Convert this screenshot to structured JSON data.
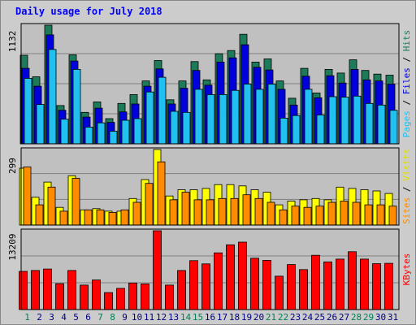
{
  "chart_data": {
    "type": "bar",
    "title": "Daily usage for July 2018",
    "categories": [
      "1",
      "2",
      "3",
      "4",
      "5",
      "6",
      "7",
      "8",
      "9",
      "10",
      "11",
      "12",
      "13",
      "14",
      "15",
      "16",
      "17",
      "18",
      "19",
      "20",
      "21",
      "22",
      "23",
      "24",
      "25",
      "26",
      "27",
      "28",
      "29",
      "30",
      "31"
    ],
    "weekend_days": [
      "1",
      "7",
      "8",
      "14",
      "15",
      "21",
      "22",
      "28",
      "29"
    ],
    "panels": [
      {
        "id": "top",
        "ymax_label": "1132",
        "ymax": 1132,
        "right_label": [
          "Pages",
          " / ",
          "Files",
          " / ",
          "Hits"
        ],
        "series": [
          {
            "name": "Hits",
            "color": "#1e7b5a",
            "values": [
              845,
              640,
              1132,
              365,
              850,
              300,
              400,
              240,
              385,
              470,
              600,
              795,
              420,
              600,
              785,
              610,
              860,
              890,
              1045,
              780,
              810,
              600,
              435,
              720,
              485,
              710,
              675,
              802,
              700,
              665,
              655
            ]
          },
          {
            "name": "Files",
            "color": "#0000dd",
            "values": [
              720,
              550,
              1040,
              320,
              790,
              255,
              340,
              205,
              305,
              380,
              550,
              715,
              380,
              530,
              700,
              560,
              780,
              820,
              945,
              730,
              705,
              520,
              370,
              645,
              440,
              650,
              580,
              710,
              610,
              600,
              570
            ]
          },
          {
            "name": "Pages",
            "color": "#20c0f0",
            "values": [
              625,
              375,
              900,
              235,
              710,
              160,
              200,
              120,
              225,
              240,
              495,
              635,
              310,
              300,
              520,
              470,
              470,
              510,
              570,
              520,
              570,
              245,
              270,
              520,
              275,
              450,
              445,
              455,
              385,
              370,
              320
            ]
          }
        ]
      },
      {
        "id": "middle",
        "ymax_label": "299",
        "ymax": 299,
        "right_label": [
          "Sites",
          " / ",
          "Visits"
        ],
        "series": [
          {
            "name": "Visits",
            "color": "#ffff00",
            "values": [
              225,
              110,
              170,
              70,
              195,
              60,
              65,
              55,
              55,
              105,
              180,
              299,
              115,
              140,
              140,
              145,
              160,
              160,
              155,
              140,
              130,
              80,
              95,
              100,
              105,
              100,
              150,
              145,
              140,
              135,
              125
            ]
          },
          {
            "name": "Sites",
            "color": "#ff8c00",
            "values": [
              230,
              80,
              150,
              55,
              185,
              60,
              60,
              50,
              60,
              90,
              165,
              250,
              100,
              130,
              100,
              100,
              105,
              105,
              120,
              105,
              90,
              60,
              75,
              70,
              75,
              90,
              95,
              90,
              80,
              80,
              75
            ]
          }
        ]
      },
      {
        "id": "bottom",
        "ymax_label": "13209",
        "ymax": 13209,
        "right_label": [
          "KBytes"
        ],
        "series": [
          {
            "name": "KBytes",
            "color": "#ff0000",
            "values": [
              6400,
              6550,
              6800,
              4350,
              6550,
              4100,
              4950,
              2850,
              3550,
              4450,
              4300,
              13209,
              4100,
              6550,
              8200,
              7650,
              9500,
              10850,
              11300,
              8600,
              8250,
              5600,
              7550,
              6700,
              9100,
              8000,
              8450,
              9700,
              8450,
              7700,
              7750
            ]
          }
        ]
      }
    ],
    "colors": {
      "page_bg": "#cccccc",
      "plot_bg": "#c0c0c0",
      "title": "#0000ff",
      "weekday": "#000080",
      "weekend": "#00805a",
      "grid": "#808080",
      "sep": "#000000"
    }
  }
}
